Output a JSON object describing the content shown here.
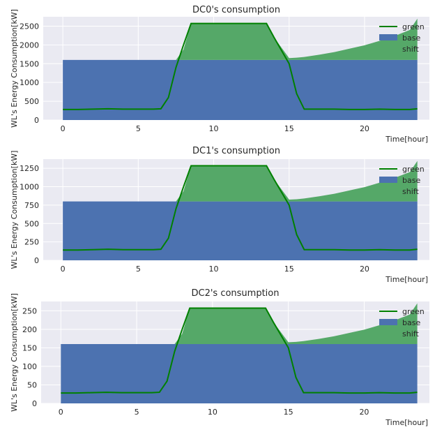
{
  "colors": {
    "background": "#eaeaf2",
    "grid": "#ffffff",
    "green_line": "#008000",
    "base_fill": "#4c72b0",
    "shift_fill": "#55a868",
    "text": "#262626"
  },
  "chart_data": [
    {
      "type": "area",
      "title": "DC0's consumption",
      "xlabel": "Time[hour]",
      "ylabel": "WL's Energy Consumption[kW]",
      "xlim": [
        -1.3,
        24.3
      ],
      "ylim": [
        0,
        2750
      ],
      "xticks": [
        0,
        5,
        10,
        15,
        20
      ],
      "yticks": [
        0,
        500,
        1000,
        1500,
        2000,
        2500
      ],
      "grid": true,
      "legend": "top-right",
      "legend_entries": [
        "green",
        "base",
        "shift"
      ],
      "x": [
        0,
        1,
        2,
        3,
        4,
        5,
        6,
        6.5,
        7,
        7.5,
        8,
        8.5,
        9,
        10,
        11,
        12,
        13,
        13.5,
        14,
        15,
        15.5,
        16,
        17,
        18,
        19,
        20,
        21,
        22,
        23,
        23.5
      ],
      "series": [
        {
          "name": "green",
          "values": [
            280,
            280,
            290,
            300,
            290,
            290,
            290,
            300,
            600,
            1400,
            2000,
            2570,
            2570,
            2570,
            2570,
            2570,
            2570,
            2570,
            2200,
            1500,
            700,
            290,
            290,
            290,
            280,
            280,
            290,
            280,
            280,
            300
          ]
        },
        {
          "name": "base",
          "values": [
            1600,
            1600,
            1600,
            1600,
            1600,
            1600,
            1600,
            1600,
            1600,
            1600,
            1600,
            1600,
            1600,
            1600,
            1600,
            1600,
            1600,
            1600,
            1600,
            1600,
            1600,
            1600,
            1600,
            1600,
            1600,
            1600,
            1600,
            1600,
            1600,
            1600
          ]
        },
        {
          "name": "shift",
          "values": [
            0,
            0,
            0,
            0,
            0,
            0,
            0,
            0,
            0,
            0,
            280,
            970,
            970,
            970,
            970,
            970,
            970,
            970,
            600,
            50,
            60,
            80,
            140,
            210,
            300,
            390,
            510,
            640,
            800,
            1100
          ]
        }
      ]
    },
    {
      "type": "area",
      "title": "DC1's consumption",
      "xlabel": "Time[hour]",
      "ylabel": "WL's Energy Consumption[kW]",
      "xlim": [
        -1.3,
        24.3
      ],
      "ylim": [
        0,
        1375
      ],
      "xticks": [
        0,
        5,
        10,
        15,
        20
      ],
      "yticks": [
        0,
        250,
        500,
        750,
        1000,
        1250
      ],
      "grid": true,
      "legend": "top-right",
      "legend_entries": [
        "green",
        "base",
        "shift"
      ],
      "x": [
        0,
        1,
        2,
        3,
        4,
        5,
        6,
        6.5,
        7,
        7.5,
        8,
        8.5,
        9,
        10,
        11,
        12,
        13,
        13.5,
        14,
        15,
        15.5,
        16,
        17,
        18,
        19,
        20,
        21,
        22,
        23,
        23.5
      ],
      "series": [
        {
          "name": "green",
          "values": [
            140,
            140,
            145,
            150,
            145,
            145,
            145,
            150,
            300,
            700,
            1000,
            1285,
            1285,
            1285,
            1285,
            1285,
            1285,
            1285,
            1100,
            750,
            350,
            145,
            145,
            145,
            140,
            140,
            145,
            140,
            140,
            150
          ]
        },
        {
          "name": "base",
          "values": [
            800,
            800,
            800,
            800,
            800,
            800,
            800,
            800,
            800,
            800,
            800,
            800,
            800,
            800,
            800,
            800,
            800,
            800,
            800,
            800,
            800,
            800,
            800,
            800,
            800,
            800,
            800,
            800,
            800,
            800
          ]
        },
        {
          "name": "shift",
          "values": [
            0,
            0,
            0,
            0,
            0,
            0,
            0,
            0,
            0,
            0,
            140,
            485,
            485,
            485,
            485,
            485,
            485,
            485,
            300,
            25,
            30,
            40,
            70,
            105,
            150,
            195,
            255,
            320,
            400,
            550
          ]
        }
      ]
    },
    {
      "type": "area",
      "title": "DC2's consumption",
      "xlabel": "Time[hour]",
      "ylabel": "WL's Energy Consumption[kW]",
      "xlim": [
        -1.3,
        24.3
      ],
      "ylim": [
        0,
        275
      ],
      "xticks": [
        0,
        5,
        10,
        15,
        20
      ],
      "yticks": [
        0,
        50,
        100,
        150,
        200,
        250
      ],
      "grid": true,
      "legend": "top-right",
      "legend_entries": [
        "green",
        "base",
        "shift"
      ],
      "x": [
        0,
        1,
        2,
        3,
        4,
        5,
        6,
        6.5,
        7,
        7.5,
        8,
        8.5,
        9,
        10,
        11,
        12,
        13,
        13.5,
        14,
        15,
        15.5,
        16,
        17,
        18,
        19,
        20,
        21,
        22,
        23,
        23.5
      ],
      "series": [
        {
          "name": "green",
          "values": [
            28,
            28,
            29,
            30,
            29,
            29,
            29,
            30,
            60,
            140,
            200,
            257,
            257,
            257,
            257,
            257,
            257,
            257,
            220,
            150,
            70,
            29,
            29,
            29,
            28,
            28,
            29,
            28,
            28,
            30
          ]
        },
        {
          "name": "base",
          "values": [
            160,
            160,
            160,
            160,
            160,
            160,
            160,
            160,
            160,
            160,
            160,
            160,
            160,
            160,
            160,
            160,
            160,
            160,
            160,
            160,
            160,
            160,
            160,
            160,
            160,
            160,
            160,
            160,
            160,
            160
          ]
        },
        {
          "name": "shift",
          "values": [
            0,
            0,
            0,
            0,
            0,
            0,
            0,
            0,
            0,
            0,
            28,
            97,
            97,
            97,
            97,
            97,
            97,
            97,
            60,
            5,
            6,
            8,
            14,
            21,
            30,
            39,
            51,
            64,
            80,
            110
          ]
        }
      ]
    }
  ]
}
